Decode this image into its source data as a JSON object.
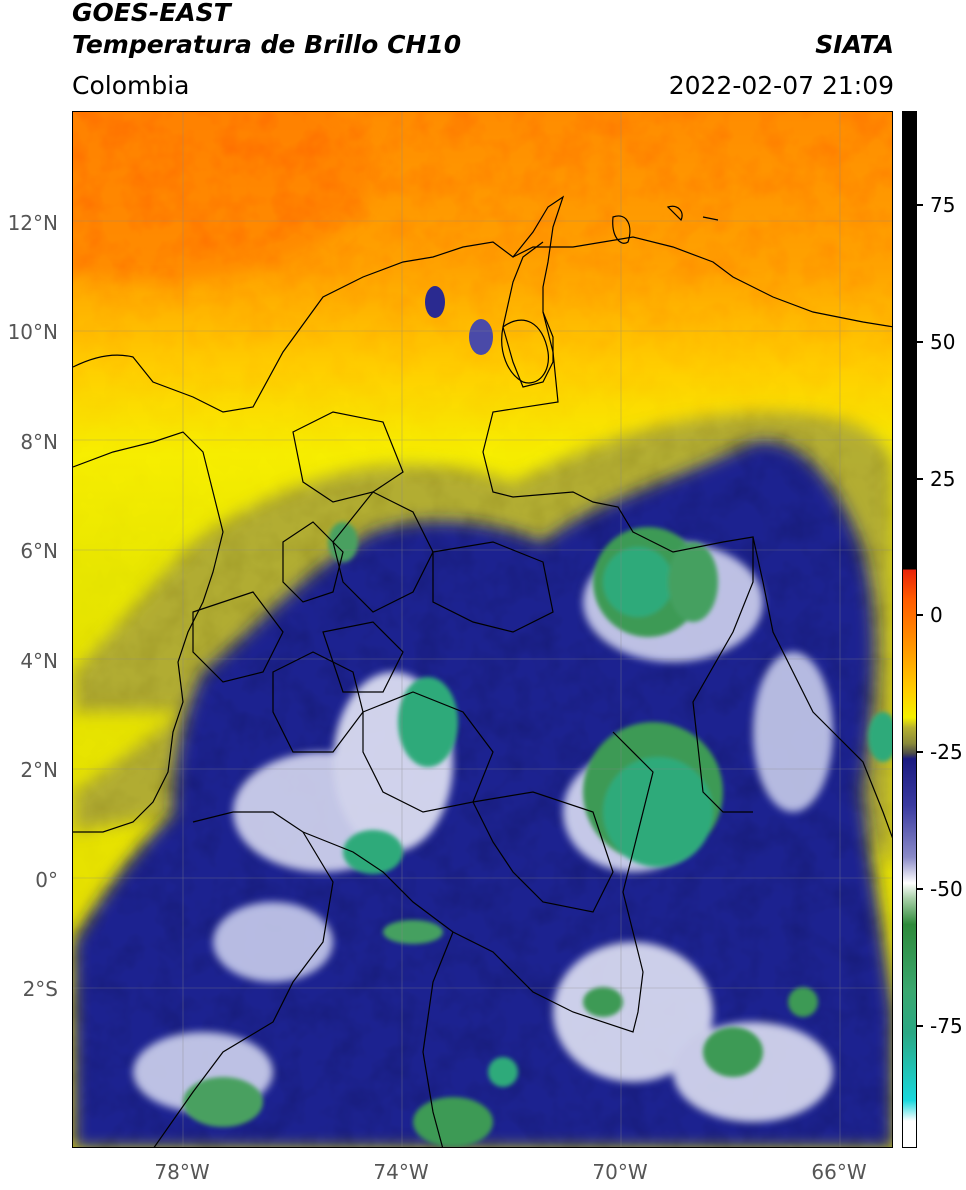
{
  "header": {
    "satellite": "GOES-EAST",
    "product": "Temperatura de Brillo CH10",
    "region": "Colombia",
    "organization": "SIATA",
    "datetime": "2022-02-07 21:09"
  },
  "axes": {
    "lat_labels": [
      "12°N",
      "10°N",
      "8°N",
      "6°N",
      "4°N",
      "2°N",
      "0°",
      "2°S"
    ],
    "lon_labels": [
      "78°W",
      "74°W",
      "70°W",
      "66°W"
    ]
  },
  "colorbar": {
    "labels": [
      "75",
      "50",
      "25",
      "0",
      "-25",
      "-50",
      "-75"
    ],
    "colors": {
      "hot": "#000000",
      "red": "#e8220a",
      "orange": "#ff9a00",
      "yellow": "#f5f000",
      "olive": "#8a8a3a",
      "navy": "#1a1a80",
      "white": "#ffffff",
      "green": "#2e8a3a",
      "teal": "#2aa884",
      "cyan": "#19d8dd"
    }
  }
}
